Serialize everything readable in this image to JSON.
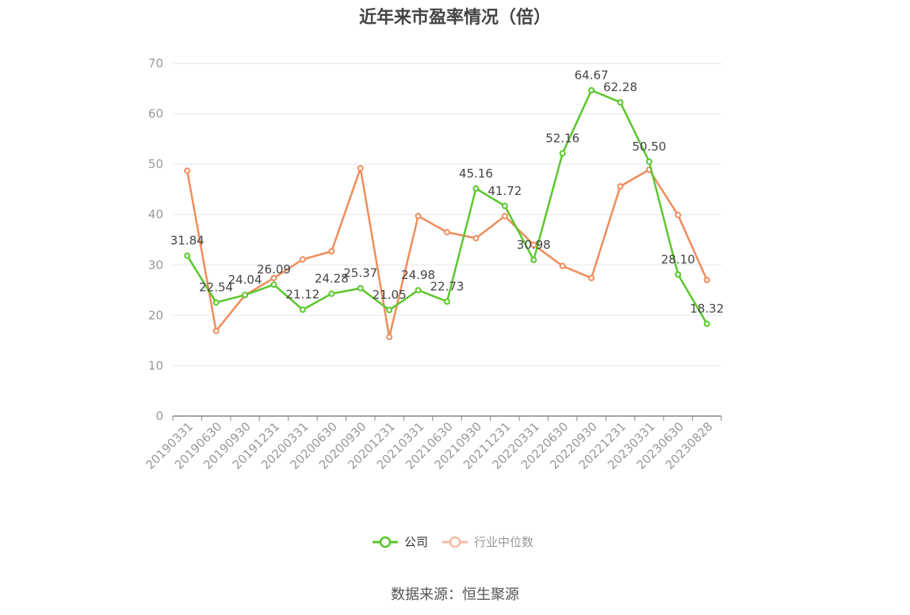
{
  "title": "近年来市盈率情况（倍）",
  "source": "数据来源：恒生聚源",
  "chart_data": {
    "type": "line",
    "title": "近年来市盈率情况（倍）",
    "xlabel": "",
    "ylabel": "",
    "ylim": [
      0,
      70
    ],
    "yticks": [
      0,
      10,
      20,
      30,
      40,
      50,
      60,
      70
    ],
    "grid": true,
    "legend_position": "bottom-center",
    "categories": [
      "20190331",
      "20190630",
      "20190930",
      "20191231",
      "20200331",
      "20200630",
      "20200930",
      "20201231",
      "20210331",
      "20210630",
      "20210930",
      "20211231",
      "20220331",
      "20220630",
      "20220930",
      "20221231",
      "20230331",
      "20230630",
      "20230828"
    ],
    "series": [
      {
        "name": "公司",
        "color": "#5ac72b",
        "values": [
          31.84,
          22.54,
          24.04,
          26.09,
          21.12,
          24.28,
          25.37,
          21.05,
          24.98,
          22.73,
          45.16,
          41.72,
          30.98,
          52.16,
          64.67,
          62.28,
          50.5,
          28.1,
          18.32
        ],
        "labels": [
          "31.84",
          "22.54",
          "24.04",
          "26.09",
          "21.12",
          "24.28",
          "25.37",
          "21.05",
          "24.98",
          "22.73",
          "45.16",
          "41.72",
          "30.98",
          "52.16",
          "64.67",
          "62.28",
          "50.50",
          "28.10",
          "18.32"
        ]
      },
      {
        "name": "行业中位数",
        "color": "#f08c5a",
        "values": [
          48.7,
          16.9,
          24.0,
          27.4,
          31.1,
          32.7,
          49.2,
          15.7,
          39.7,
          36.5,
          35.3,
          39.7,
          34.0,
          29.8,
          27.4,
          45.6,
          48.9,
          39.9,
          27.0
        ]
      }
    ]
  },
  "legend": {
    "company_color": "#5ac72b",
    "industry_color": "#f5b9a0"
  }
}
